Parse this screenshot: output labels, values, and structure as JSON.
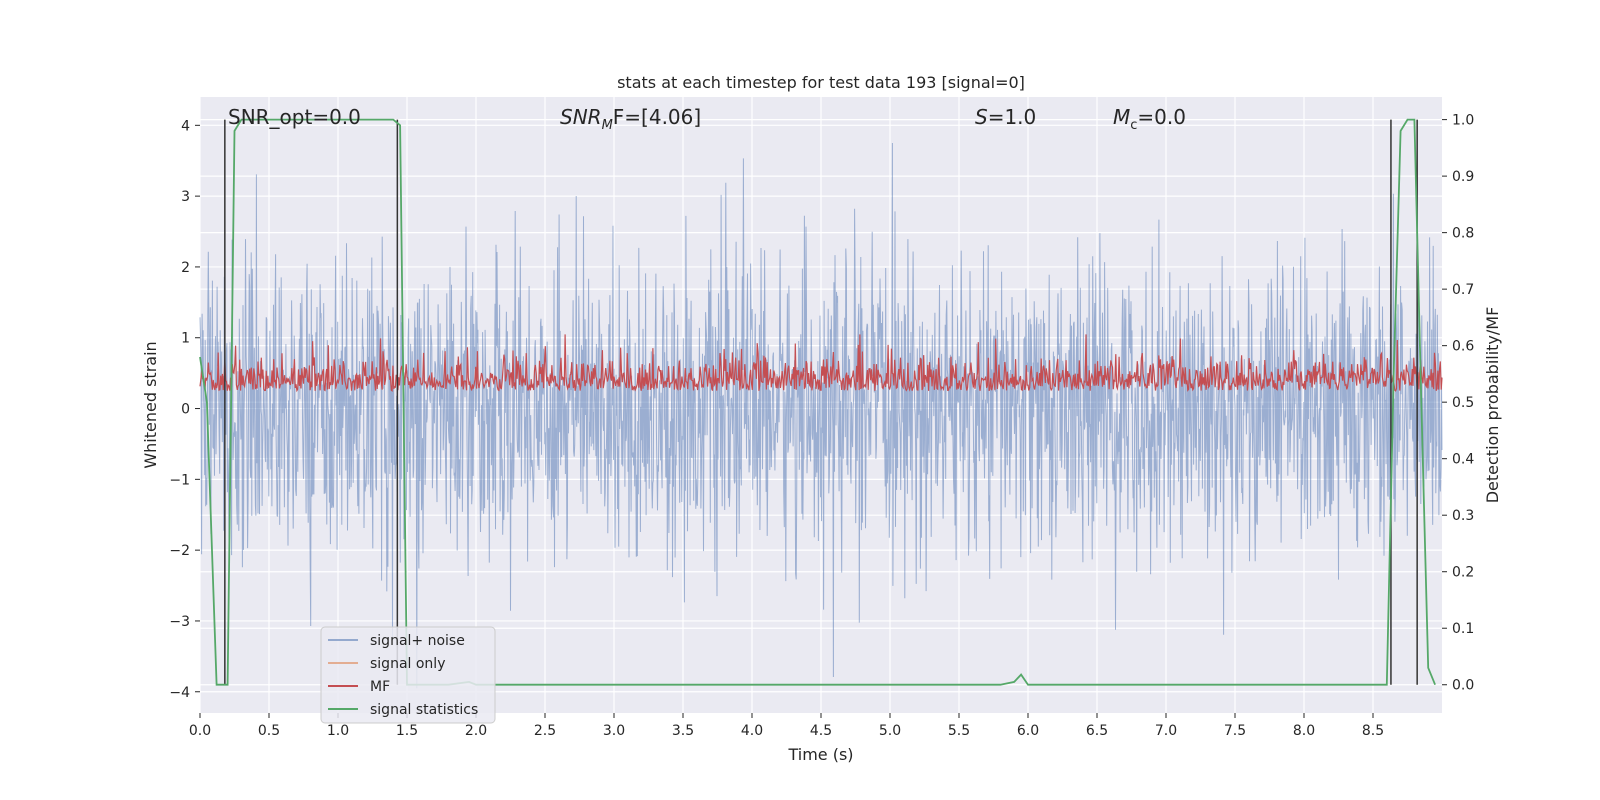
{
  "chart_data": {
    "type": "line",
    "title": "stats at each timestep for test data 193 [signal=0]",
    "xlabel": "Time (s)",
    "ylabel": "Whitened strain",
    "ylabel_right": "Detection probability/MF",
    "xlim": [
      0.0,
      9.0
    ],
    "ylim": [
      -4.3,
      4.4
    ],
    "ylim_right": [
      -0.05,
      1.04
    ],
    "x_ticks": [
      "0.0",
      "0.5",
      "1.0",
      "1.5",
      "2.0",
      "2.5",
      "3.0",
      "3.5",
      "4.0",
      "4.5",
      "5.0",
      "5.5",
      "6.0",
      "6.5",
      "7.0",
      "7.5",
      "8.0",
      "8.5"
    ],
    "y_ticks": [
      "4",
      "3",
      "2",
      "1",
      "0",
      "−1",
      "−2",
      "−3",
      "−4"
    ],
    "y_ticks_right": [
      "1.0",
      "0.9",
      "0.8",
      "0.7",
      "0.6",
      "0.5",
      "0.4",
      "0.3",
      "0.2",
      "0.1",
      "0.0"
    ],
    "grid": true,
    "legend_position": "lower-left",
    "annotations": {
      "snr_opt": "SNR_opt=0.0",
      "snr_mf": "SNR",
      "snr_mf_sub": "M",
      "snr_mf_rest": "F=[4.06]",
      "s_italic": "S",
      "s_rest": "=1.0",
      "mc_italic": "M",
      "mc_sub": "c",
      "mc_rest": "=0.0"
    },
    "series": [
      {
        "name": "signal+ noise",
        "color": "#4c72b0",
        "description_values": "noise envelope ~[-2.5, 2.5], spikes to ~3.7"
      },
      {
        "name": "signal only",
        "color": "#dd8452",
        "values": []
      },
      {
        "name": "MF",
        "color": "#c44e52",
        "range_right_axis": [
          0.5,
          0.62
        ]
      },
      {
        "name": "signal statistics",
        "color": "#55a868",
        "x": [
          0.0,
          0.05,
          0.12,
          0.17,
          0.2,
          0.25,
          0.3,
          0.5,
          1.0,
          1.4,
          1.45,
          1.5,
          1.55,
          1.8,
          1.95,
          2.0,
          2.5,
          3.0,
          4.0,
          5.0,
          5.8,
          5.9,
          5.95,
          6.0,
          7.0,
          8.0,
          8.6,
          8.65,
          8.7,
          8.75,
          8.8,
          8.85,
          8.9,
          8.95
        ],
        "values": [
          0.58,
          0.5,
          0.0,
          0.0,
          0.0,
          0.98,
          1.0,
          1.0,
          1.0,
          1.0,
          0.99,
          0.0,
          0.0,
          0.0,
          0.005,
          0.0,
          0.0,
          0.0,
          0.0,
          0.0,
          0.0,
          0.005,
          0.018,
          0.0,
          0.0,
          0.0,
          0.0,
          0.55,
          0.98,
          1.0,
          1.0,
          0.5,
          0.03,
          0.0
        ]
      }
    ],
    "vertical_markers_x": [
      0.18,
      1.43,
      8.63,
      8.82
    ]
  }
}
